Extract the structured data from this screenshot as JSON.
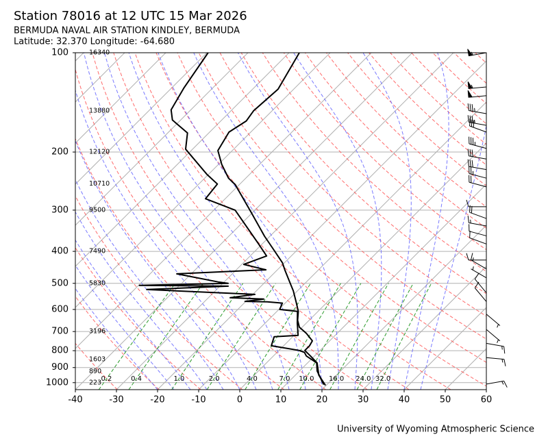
{
  "chart_data": {
    "type": "skewt",
    "title": "Station 78016 at 12 UTC 15 Mar 2026",
    "subtitle": "BERMUDA NAVAL AIR STATION KINDLEY, BERMUDA",
    "location": "Latitude: 32.370 Longitude: -64.680",
    "footer": "University of Wyoming Atmospheric Science",
    "xlim": [
      -40,
      60
    ],
    "xticks": [
      -40,
      -30,
      -20,
      -10,
      0,
      10,
      20,
      30,
      40,
      50,
      60
    ],
    "ylim": [
      1050,
      100
    ],
    "yticks": [
      100,
      200,
      300,
      400,
      500,
      600,
      700,
      800,
      900,
      1000
    ],
    "log_y": true,
    "grid": true,
    "series": [
      {
        "color": "#000000",
        "pressure": [
          1019,
          949,
          871,
          830,
          799,
          773,
          747,
          709,
          679,
          647,
          608,
          567,
          527,
          503,
          457,
          433,
          396,
          360,
          304,
          251,
          240,
          218,
          198,
          174,
          161,
          150,
          129,
          100
        ],
        "values": [
          19.8,
          15.7,
          12.3,
          9.0,
          6.3,
          6.3,
          5.8,
          2.5,
          -0.7,
          -2.8,
          -4.8,
          -7.8,
          -11,
          -13.3,
          -18,
          -20.5,
          -25.7,
          -31.3,
          -40.5,
          -51,
          -54.2,
          -59.2,
          -63.5,
          -65.3,
          -63.8,
          -64.5,
          -63.8,
          -67.5
        ]
      },
      {
        "color": "#000000",
        "pressure": [
          1014,
          922,
          871,
          830,
          810,
          799,
          773,
          726,
          719,
          660,
          608,
          600,
          574,
          569,
          567,
          558,
          553,
          540,
          522,
          510,
          507,
          500,
          495,
          468,
          455,
          438,
          413,
          379,
          300,
          277,
          250,
          234,
          196,
          175,
          160,
          149,
          128,
          100
        ],
        "values": [
          19.2,
          14.3,
          12.2,
          8.0,
          6.7,
          5.0,
          -3.0,
          -4.5,
          1.0,
          -2.2,
          -5,
          -9.8,
          -10.7,
          -14.7,
          -20.2,
          -16.2,
          -24.7,
          -19.5,
          -47,
          -28,
          -49.8,
          -28.7,
          -31.5,
          -43.5,
          -22.8,
          -29.5,
          -26,
          -31,
          -44.8,
          -54.8,
          -55.5,
          -60.3,
          -71.7,
          -75.2,
          -82,
          -84.8,
          -87,
          -89.7
        ]
      }
    ],
    "height_labels": {
      "pressure": [
        100,
        150,
        200,
        250,
        300,
        400,
        500,
        700,
        850,
        925,
        1000
      ],
      "values": [
        16340,
        13880,
        12120,
        10710,
        9500,
        7490,
        5830,
        3196,
        1603,
        890,
        223
      ]
    },
    "mixing_ratios": [
      {
        "value": 0.2,
        "label": "0.2"
      },
      {
        "value": 0.4,
        "label": "0.4"
      },
      {
        "value": 1,
        "label": "1.0"
      },
      {
        "value": 2,
        "label": "2.0"
      },
      {
        "value": 4,
        "label": "4.0"
      },
      {
        "value": 7,
        "label": "7.0"
      },
      {
        "value": 10,
        "label": "10.0"
      },
      {
        "value": 16,
        "label": "16.0"
      },
      {
        "value": 24,
        "label": "24.0"
      },
      {
        "value": 32,
        "label": "32.0"
      }
    ],
    "wind": {
      "pressure": [
        100,
        127,
        135,
        153,
        166,
        174,
        195,
        210,
        226,
        240,
        255,
        293,
        318,
        335,
        359,
        380,
        425,
        452,
        481,
        534,
        568,
        620,
        690,
        760,
        840,
        1010
      ],
      "speed": [
        55,
        55,
        50,
        35,
        35,
        30,
        35,
        30,
        30,
        25,
        20,
        10,
        20,
        15,
        10,
        10,
        10,
        15,
        5,
        10,
        10,
        5,
        5,
        15,
        15,
        15
      ],
      "direction": [
        260,
        265,
        265,
        280,
        280,
        290,
        285,
        280,
        280,
        285,
        285,
        270,
        290,
        280,
        285,
        290,
        270,
        300,
        300,
        320,
        320,
        130,
        130,
        100,
        95,
        80
      ]
    }
  }
}
